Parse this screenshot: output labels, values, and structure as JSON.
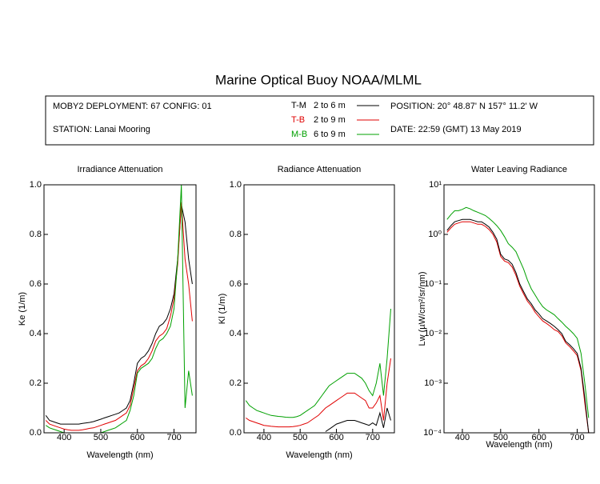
{
  "title": "Marine Optical Buoy NOAA/MLML",
  "info": {
    "deployment": "MOBY2 DEPLOYMENT: 67 CONFIG: 01",
    "station": "STATION: Lanai Mooring",
    "position": "POSITION: 20° 48.87' N   157° 11.2' W",
    "date": "DATE: 22:59 (GMT) 13 May 2019"
  },
  "legend": [
    {
      "name": "T-M",
      "depth": "2 to 6  m",
      "color": "#000000"
    },
    {
      "name": "T-B",
      "depth": "2 to 9  m",
      "color": "#e00000"
    },
    {
      "name": "M-B",
      "depth": "6 to 9  m",
      "color": "#00a000"
    }
  ],
  "chart_data": [
    {
      "type": "line",
      "title": "Irradiance Attenuation",
      "xlabel": "Wavelength (nm)",
      "ylabel": "Ke  (1/m)",
      "x": [
        350,
        360,
        370,
        380,
        390,
        400,
        410,
        420,
        430,
        440,
        450,
        460,
        470,
        480,
        490,
        500,
        510,
        520,
        530,
        540,
        550,
        560,
        570,
        580,
        590,
        600,
        610,
        620,
        630,
        640,
        650,
        660,
        670,
        680,
        690,
        700,
        710,
        720,
        730,
        740,
        750
      ],
      "xlim": [
        345,
        760
      ],
      "xticks": [
        400,
        500,
        600,
        700
      ],
      "ylim": [
        0,
        1
      ],
      "yticks": [
        {
          "value": 0,
          "label": "0.0"
        },
        0.2,
        0.4,
        0.6,
        0.8,
        {
          "value": 1,
          "label": "1.0"
        }
      ],
      "series": [
        {
          "color": "#000000",
          "values": [
            0.07,
            0.05,
            0.045,
            0.04,
            0.035,
            0.035,
            0.035,
            0.035,
            0.035,
            0.035,
            0.038,
            0.04,
            0.042,
            0.045,
            0.05,
            0.055,
            0.06,
            0.065,
            0.07,
            0.075,
            0.08,
            0.09,
            0.1,
            0.13,
            0.2,
            0.28,
            0.3,
            0.31,
            0.33,
            0.36,
            0.4,
            0.43,
            0.44,
            0.46,
            0.5,
            0.56,
            0.7,
            0.92,
            0.85,
            0.7,
            0.6
          ]
        },
        {
          "color": "#e00000",
          "values": [
            0.05,
            0.035,
            0.03,
            0.025,
            0.02,
            0.015,
            0.012,
            0.01,
            0.01,
            0.01,
            0.012,
            0.015,
            0.018,
            0.02,
            0.025,
            0.03,
            0.035,
            0.04,
            0.045,
            0.05,
            0.06,
            0.07,
            0.08,
            0.11,
            0.18,
            0.25,
            0.27,
            0.28,
            0.3,
            0.33,
            0.37,
            0.39,
            0.4,
            0.42,
            0.47,
            0.54,
            0.68,
            0.93,
            0.7,
            0.6,
            0.45
          ]
        },
        {
          "color": "#00a000",
          "values": [
            0.03,
            0.02,
            0.015,
            0.01,
            0.005,
            0,
            0,
            0,
            0,
            0,
            0,
            0,
            0,
            0,
            0,
            0,
            0.005,
            0.01,
            0.015,
            0.02,
            0.03,
            0.04,
            0.05,
            0.09,
            0.15,
            0.24,
            0.26,
            0.27,
            0.28,
            0.3,
            0.34,
            0.37,
            0.38,
            0.4,
            0.43,
            0.5,
            0.7,
            1.0,
            0.1,
            0.25,
            0.15
          ]
        }
      ]
    },
    {
      "type": "line",
      "title": "Radiance Attenuation",
      "xlabel": "Wavelength (nm)",
      "ylabel": "Kl  (1/m)",
      "x": [
        350,
        360,
        370,
        380,
        390,
        400,
        410,
        420,
        430,
        440,
        450,
        460,
        470,
        480,
        490,
        500,
        510,
        520,
        530,
        540,
        550,
        560,
        570,
        580,
        590,
        600,
        610,
        620,
        630,
        640,
        650,
        660,
        670,
        680,
        690,
        700,
        710,
        720,
        730,
        740,
        750
      ],
      "xlim": [
        345,
        760
      ],
      "xticks": [
        400,
        500,
        600,
        700
      ],
      "ylim": [
        0,
        1
      ],
      "yticks": [
        {
          "value": 0,
          "label": "0.0"
        },
        0.2,
        0.4,
        0.6,
        0.8,
        {
          "value": 1,
          "label": "1.0"
        }
      ],
      "series": [
        {
          "color": "#00a000",
          "values": [
            0.13,
            0.11,
            0.1,
            0.09,
            0.085,
            0.08,
            0.075,
            0.07,
            0.068,
            0.066,
            0.065,
            0.063,
            0.062,
            0.062,
            0.065,
            0.07,
            0.08,
            0.09,
            0.1,
            0.11,
            0.13,
            0.15,
            0.17,
            0.19,
            0.2,
            0.21,
            0.22,
            0.23,
            0.24,
            0.24,
            0.24,
            0.23,
            0.22,
            0.2,
            0.17,
            0.15,
            0.2,
            0.28,
            0.15,
            0.3,
            0.5
          ]
        },
        {
          "color": "#e00000",
          "values": [
            0.06,
            0.05,
            0.045,
            0.04,
            0.035,
            0.03,
            0.028,
            0.026,
            0.025,
            0.024,
            0.024,
            0.024,
            0.024,
            0.025,
            0.027,
            0.03,
            0.035,
            0.04,
            0.05,
            0.06,
            0.07,
            0.085,
            0.1,
            0.11,
            0.12,
            0.13,
            0.14,
            0.15,
            0.16,
            0.16,
            0.16,
            0.15,
            0.14,
            0.13,
            0.1,
            0.1,
            0.12,
            0.15,
            0.05,
            0.2,
            0.3
          ]
        },
        {
          "color": "#000000",
          "values": [
            null,
            null,
            null,
            null,
            null,
            null,
            null,
            null,
            null,
            null,
            null,
            null,
            null,
            null,
            null,
            null,
            null,
            null,
            null,
            null,
            null,
            null,
            0.005,
            0.015,
            0.025,
            0.035,
            0.04,
            0.045,
            0.05,
            0.05,
            0.05,
            0.045,
            0.04,
            0.035,
            0.03,
            0.04,
            0.03,
            0.08,
            0.02,
            0.1,
            0.05
          ]
        }
      ]
    },
    {
      "type": "line",
      "title": "Water Leaving Radiance",
      "xlabel": "Wavelength (nm)",
      "ylabel": "Lw  (µW/cm²/sr/nm)",
      "log": true,
      "x": [
        360,
        370,
        380,
        390,
        400,
        410,
        420,
        430,
        440,
        450,
        460,
        470,
        480,
        490,
        500,
        510,
        520,
        530,
        540,
        550,
        560,
        570,
        580,
        590,
        600,
        610,
        620,
        630,
        640,
        650,
        660,
        670,
        680,
        690,
        700,
        710,
        720,
        730
      ],
      "xlim": [
        352,
        745
      ],
      "xticks": [
        400,
        500,
        600,
        700
      ],
      "ylim": [
        0.0001,
        10
      ],
      "yticks": [
        {
          "value": 10,
          "label": "10¹"
        },
        {
          "value": 1,
          "label": "10⁰"
        },
        {
          "value": 0.1,
          "label": "10⁻¹"
        },
        {
          "value": 0.01,
          "label": "10⁻²"
        },
        {
          "value": 0.001,
          "label": "10⁻³"
        },
        {
          "value": 0.0001,
          "label": "10⁻⁴"
        }
      ],
      "series": [
        {
          "color": "#00a000",
          "values": [
            2,
            2.5,
            3,
            3,
            3.2,
            3.5,
            3.3,
            3.0,
            2.8,
            2.6,
            2.4,
            2.1,
            1.8,
            1.5,
            1.2,
            0.9,
            0.65,
            0.55,
            0.45,
            0.3,
            0.2,
            0.12,
            0.08,
            0.06,
            0.045,
            0.035,
            0.03,
            0.027,
            0.024,
            0.02,
            0.017,
            0.014,
            0.012,
            0.01,
            0.008,
            0.004,
            0.001,
            0.0002
          ]
        },
        {
          "color": "#e00000",
          "values": [
            1.1,
            1.35,
            1.6,
            1.7,
            1.8,
            1.8,
            1.8,
            1.7,
            1.6,
            1.6,
            1.45,
            1.25,
            1.0,
            0.7,
            0.36,
            0.29,
            0.27,
            0.22,
            0.15,
            0.09,
            0.063,
            0.045,
            0.036,
            0.027,
            0.022,
            0.018,
            0.016,
            0.014,
            0.012,
            0.011,
            0.009,
            0.0065,
            0.0055,
            0.0045,
            0.0036,
            0.0018,
            0.0004,
            0.0001
          ]
        },
        {
          "color": "#000000",
          "values": [
            1.2,
            1.5,
            1.8,
            1.9,
            2.0,
            2.0,
            2.0,
            1.9,
            1.8,
            1.8,
            1.6,
            1.4,
            1.1,
            0.8,
            0.4,
            0.32,
            0.3,
            0.25,
            0.17,
            0.1,
            0.07,
            0.05,
            0.04,
            0.03,
            0.025,
            0.02,
            0.018,
            0.016,
            0.014,
            0.012,
            0.01,
            0.007,
            0.006,
            0.005,
            0.004,
            0.002,
            0.0005,
            0.0001
          ]
        }
      ]
    }
  ]
}
